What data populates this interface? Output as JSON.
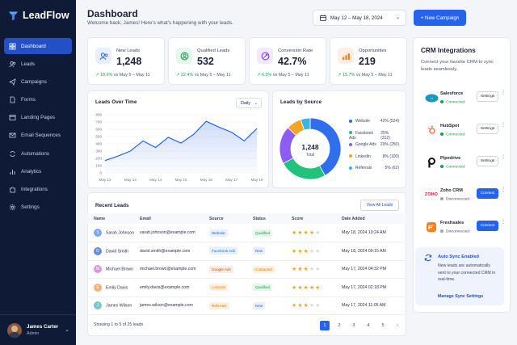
{
  "app": {
    "name": "LeadFlow"
  },
  "nav": [
    {
      "label": "Dashboard",
      "icon": "grid-icon",
      "active": true
    },
    {
      "label": "Leads",
      "icon": "users-icon"
    },
    {
      "label": "Campaigns",
      "icon": "send-icon"
    },
    {
      "label": "Forms",
      "icon": "file-icon"
    },
    {
      "label": "Landing Pages",
      "icon": "layout-icon"
    },
    {
      "label": "Email Sequences",
      "icon": "mail-icon"
    },
    {
      "label": "Automations",
      "icon": "refresh-icon"
    },
    {
      "label": "Analytics",
      "icon": "chart-icon"
    },
    {
      "label": "Integrations",
      "icon": "puzzle-icon"
    },
    {
      "label": "Settings",
      "icon": "gear-icon"
    }
  ],
  "user": {
    "name": "James Carter",
    "role": "Admin"
  },
  "header": {
    "title": "Dashboard",
    "subtitle": "Welcome back, James! Here's what's happening with your leads.",
    "date_range": "May 12 – May 18, 2024",
    "new_campaign": "+ New Campaign"
  },
  "stats": [
    {
      "label": "New Leads",
      "value": "1,248",
      "change": "↗ 18.6%",
      "period": "vs May 5 – May 11",
      "color": "#2563eb",
      "bg": "#e8effd"
    },
    {
      "label": "Qualified Leads",
      "value": "532",
      "change": "↗ 22.4%",
      "period": "vs May 5 – May 11",
      "color": "#16a34a",
      "bg": "#e6f6ec"
    },
    {
      "label": "Conversion Rate",
      "value": "42.7%",
      "change": "↗ 6.3%",
      "period": "vs May 5 – May 11",
      "color": "#7c3aed",
      "bg": "#f1eafd"
    },
    {
      "label": "Opportunities",
      "value": "219",
      "change": "↗ 15.7%",
      "period": "vs May 5 – May 11",
      "color": "#ea7b18",
      "bg": "#fdf0e3"
    }
  ],
  "leads_over_time": {
    "title": "Leads Over Time",
    "period": "Daily"
  },
  "leads_by_source": {
    "title": "Leads by Source",
    "total_value": "1,248",
    "total_label": "Total"
  },
  "chart_data": [
    {
      "type": "area",
      "title": "Leads Over Time",
      "categories": [
        "May 12",
        "May 13",
        "May 14",
        "May 15",
        "May 16",
        "May 17",
        "May 18"
      ],
      "x": [
        0,
        0.5,
        1,
        1.5,
        2,
        2.5,
        3,
        3.5,
        4,
        4.5,
        5,
        5.5,
        6
      ],
      "values": [
        170,
        230,
        300,
        440,
        350,
        490,
        410,
        530,
        710,
        630,
        560,
        440,
        610
      ],
      "ylim": [
        0,
        800
      ],
      "yticks": [
        "800",
        "700",
        "600",
        "500",
        "400",
        "300",
        "200",
        "100",
        "0"
      ],
      "grid": true,
      "color": "#2563eb"
    },
    {
      "type": "pie",
      "title": "Leads by Source",
      "series": [
        {
          "name": "Website",
          "percent": 42,
          "count": 524,
          "color": "#2f6fec"
        },
        {
          "name": "Facebook Ads",
          "percent": 25,
          "count": 312,
          "color": "#22c27d"
        },
        {
          "name": "Google Ads",
          "percent": 20,
          "count": 250,
          "color": "#8b5cf6"
        },
        {
          "name": "LinkedIn",
          "percent": 8,
          "count": 100,
          "color": "#f5a524"
        },
        {
          "name": "Referrals",
          "percent": 5,
          "count": 62,
          "color": "#34b7e8"
        }
      ]
    }
  ],
  "sources_legend": [
    {
      "name": "Website",
      "display": "42% (524)"
    },
    {
      "name": "Facebook Ads",
      "display": "25% (312)"
    },
    {
      "name": "Google Ads",
      "display": "20% (250)"
    },
    {
      "name": "LinkedIn",
      "display": "8% (100)"
    },
    {
      "name": "Referrals",
      "display": "5% (62)"
    }
  ],
  "recent": {
    "title": "Recent Leads",
    "view_all": "View All Leads",
    "columns": [
      "Name",
      "Email",
      "Source",
      "Status",
      "Score",
      "Date Added"
    ],
    "rows": [
      {
        "initials": "S",
        "name": "Sarah Johnson",
        "email": "sarah.johnson@example.com",
        "source": "Website",
        "source_color": "#2563eb",
        "source_bg": "#e8effd",
        "status": "Qualified",
        "status_color": "#16a34a",
        "status_bg": "#e6f6ec",
        "score": 4,
        "date": "May 18, 2024 10:24 AM",
        "av": "#7aa7f0"
      },
      {
        "initials": "D",
        "name": "David Smith",
        "email": "david.smith@example.com",
        "source": "Facebook Ads",
        "source_color": "#1877f2",
        "source_bg": "#e6f0fe",
        "status": "New",
        "status_color": "#2563eb",
        "status_bg": "#e8effd",
        "score": 3,
        "date": "May 18, 2024 09:15 AM",
        "av": "#6a8ed6"
      },
      {
        "initials": "M",
        "name": "Michael Brown",
        "email": "michael.brown@example.com",
        "source": "Google Ads",
        "source_color": "#b4532a",
        "source_bg": "#fdecdf",
        "status": "Contacted",
        "status_color": "#d97706",
        "status_bg": "#fdf1dd",
        "score": 3,
        "date": "May 17, 2024 04:32 PM",
        "av": "#d79ad9"
      },
      {
        "initials": "E",
        "name": "Emily Davis",
        "email": "emily.davis@example.com",
        "source": "LinkedIn",
        "source_color": "#ea7b18",
        "source_bg": "#fdf0e3",
        "status": "Qualified",
        "status_color": "#16a34a",
        "status_bg": "#e6f6ec",
        "score": 5,
        "date": "May 17, 2024 02:18 PM",
        "av": "#f1b27a"
      },
      {
        "initials": "J",
        "name": "James Wilson",
        "email": "james.wilson@example.com",
        "source": "Referrals",
        "source_color": "#d97706",
        "source_bg": "#fdf1dd",
        "status": "New",
        "status_color": "#2563eb",
        "status_bg": "#e8effd",
        "score": 3,
        "date": "May 17, 2024 11:05 AM",
        "av": "#7cc6c6"
      }
    ],
    "showing": "Showing 1 to 5 of 25 leads",
    "pages": [
      "1",
      "2",
      "3",
      "4",
      "5",
      "›"
    ]
  },
  "crm": {
    "title": "CRM Integrations",
    "subtitle": "Connect your favorite CRM to sync leads seamlessly.",
    "items": [
      {
        "name": "Salesforce",
        "status": "Connected",
        "connected": true,
        "action": "Settings"
      },
      {
        "name": "HubSpot",
        "status": "Connected",
        "connected": true,
        "action": "Settings"
      },
      {
        "name": "Pipedrive",
        "status": "Connected",
        "connected": true,
        "action": "Settings"
      },
      {
        "name": "Zoho CRM",
        "status": "Disconnected",
        "connected": false,
        "action": "Connect"
      },
      {
        "name": "Freshsales",
        "status": "Disconnected",
        "connected": false,
        "action": "Connect"
      }
    ],
    "zoho_logo": "ZOHO",
    "auto": {
      "title": "Auto Sync Enabled",
      "desc": "New leads are automatically sent to your connected CRM in real-time.",
      "link": "Manage Sync Settings"
    }
  }
}
